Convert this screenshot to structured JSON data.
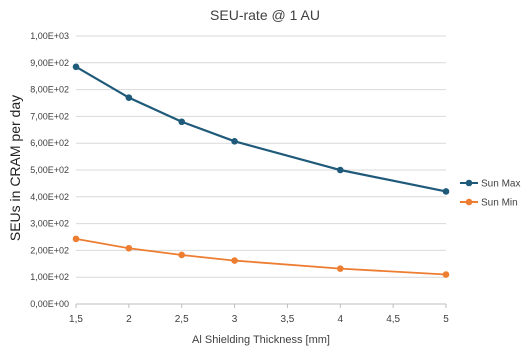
{
  "chart_data": {
    "type": "line",
    "title": "SEU-rate @ 1 AU",
    "xlabel": "Al Shielding Thickness [mm]",
    "ylabel": "SEUs in CRAM per day",
    "xlim": [
      1.5,
      5
    ],
    "ylim": [
      0,
      1000
    ],
    "x_ticks": [
      "1,5",
      "2",
      "2,5",
      "3",
      "3,5",
      "4",
      "4,5",
      "5"
    ],
    "y_ticks": [
      "0,00E+00",
      "1,00E+02",
      "2,00E+02",
      "3,00E+02",
      "4,00E+02",
      "5,00E+02",
      "6,00E+02",
      "7,00E+02",
      "8,00E+02",
      "9,00E+02",
      "1,00E+03"
    ],
    "grid": true,
    "legend_position": "right",
    "series": [
      {
        "name": "Sun Max",
        "color": "#1f5a7a",
        "x": [
          1.5,
          2,
          2.5,
          3,
          4,
          5
        ],
        "y": [
          885,
          770,
          680,
          607,
          500,
          420
        ]
      },
      {
        "name": "Sun Min",
        "color": "#ed7d31",
        "x": [
          1.5,
          2,
          2.5,
          3,
          4,
          5
        ],
        "y": [
          243,
          208,
          183,
          162,
          132,
          110
        ]
      }
    ]
  }
}
